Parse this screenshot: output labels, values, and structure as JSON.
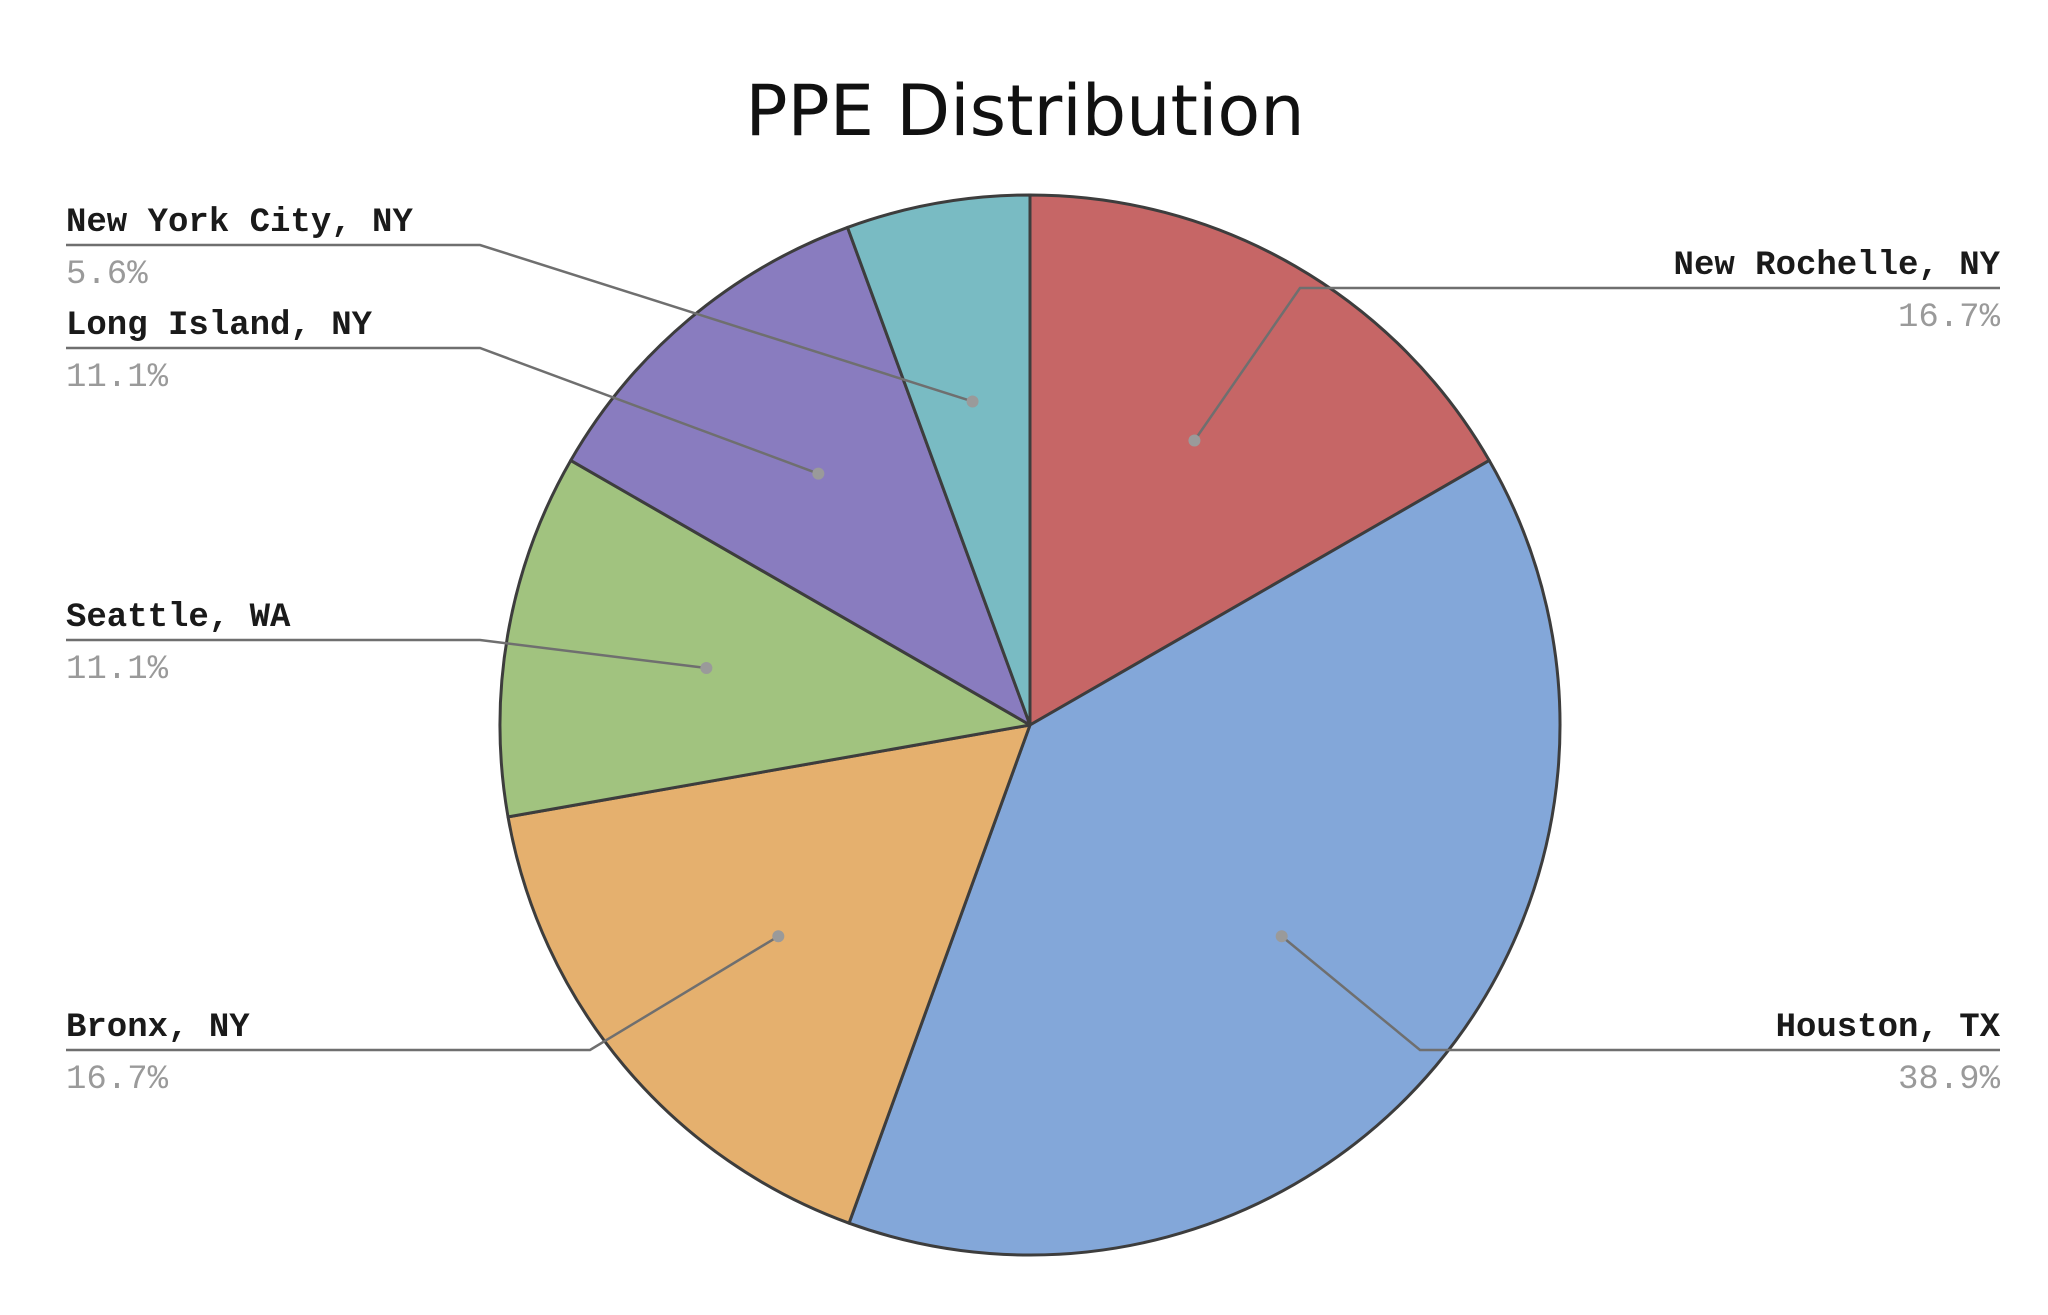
{
  "chart_data": {
    "type": "pie",
    "title": "PPE Distribution",
    "start_angle_deg": 0,
    "direction": "clockwise",
    "slices": [
      {
        "label": "New Rochelle, NY",
        "pct_label": "16.7%",
        "value": 16.7,
        "color": "#c66666"
      },
      {
        "label": "Houston, TX",
        "pct_label": "38.9%",
        "value": 38.9,
        "color": "#83a7d9"
      },
      {
        "label": "Bronx, NY",
        "pct_label": "16.7%",
        "value": 16.7,
        "color": "#e5b06e"
      },
      {
        "label": "Seattle, WA",
        "pct_label": "11.1%",
        "value": 11.1,
        "color": "#a1c37f"
      },
      {
        "label": "Long Island, NY",
        "pct_label": "11.1%",
        "value": 11.1,
        "color": "#897cbf"
      },
      {
        "label": "New York City, NY",
        "pct_label": "5.6%",
        "value": 5.6,
        "color": "#79bbc3"
      }
    ]
  }
}
